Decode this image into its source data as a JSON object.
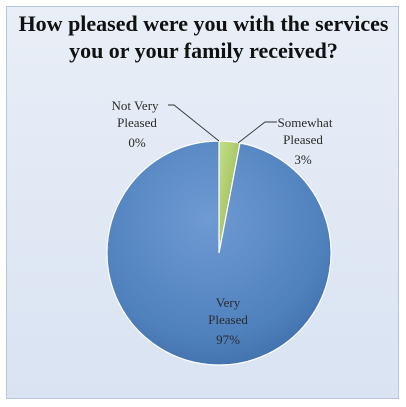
{
  "chart_data": {
    "type": "pie",
    "title": "How pleased were you with the services you or your family received?",
    "slices": [
      {
        "label": "Not Very Pleased",
        "value": 0,
        "value_label": "0%",
        "color": "#f3f3f3"
      },
      {
        "label": "Somewhat Pleased",
        "value": 3,
        "value_label": "3%",
        "color": "#9bbb59"
      },
      {
        "label": "Very Pleased",
        "value": 97,
        "value_label": "97%",
        "color": "#4f81bd"
      }
    ],
    "legend": "none",
    "data_labels": "category-and-percent"
  }
}
